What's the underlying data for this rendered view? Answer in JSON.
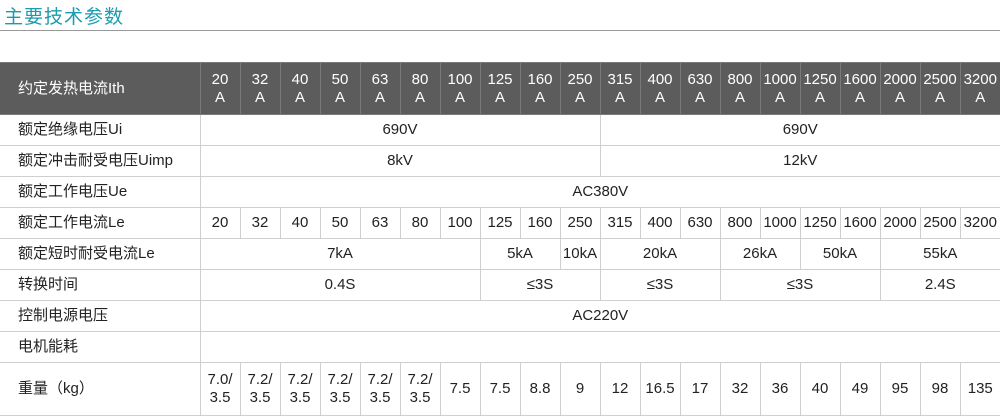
{
  "header": {
    "title": "主要技术参数"
  },
  "table": {
    "head": {
      "label": "约定发热电流Ith",
      "columns": [
        [
          "20",
          "A"
        ],
        [
          "32",
          "A"
        ],
        [
          "40",
          "A"
        ],
        [
          "50",
          "A"
        ],
        [
          "63",
          "A"
        ],
        [
          "80",
          "A"
        ],
        [
          "100",
          "A"
        ],
        [
          "125",
          "A"
        ],
        [
          "160",
          "A"
        ],
        [
          "250",
          "A"
        ],
        [
          "315",
          "A"
        ],
        [
          "400",
          "A"
        ],
        [
          "630",
          "A"
        ],
        [
          "800",
          "A"
        ],
        [
          "1000",
          "A"
        ],
        [
          "1250",
          "A"
        ],
        [
          "1600",
          "A"
        ],
        [
          "2000",
          "A"
        ],
        [
          "2500",
          "A"
        ],
        [
          "3200",
          "A"
        ]
      ]
    },
    "rows": [
      {
        "label": "额定绝缘电压Ui",
        "cells": [
          {
            "text": "690V",
            "span": 10
          },
          {
            "text": "690V",
            "span": 10
          }
        ]
      },
      {
        "label": "额定冲击耐受电压Uimp",
        "cells": [
          {
            "text": "8kV",
            "span": 10
          },
          {
            "text": "12kV",
            "span": 10
          }
        ]
      },
      {
        "label": "额定工作电压Ue",
        "cells": [
          {
            "text": "AC380V",
            "span": 20
          }
        ]
      },
      {
        "label": "额定工作电流Le",
        "cells": [
          {
            "text": "20"
          },
          {
            "text": "32"
          },
          {
            "text": "40"
          },
          {
            "text": "50"
          },
          {
            "text": "63"
          },
          {
            "text": "80"
          },
          {
            "text": "100"
          },
          {
            "text": "125"
          },
          {
            "text": "160"
          },
          {
            "text": "250"
          },
          {
            "text": "315"
          },
          {
            "text": "400"
          },
          {
            "text": "630"
          },
          {
            "text": "800"
          },
          {
            "text": "1000"
          },
          {
            "text": "1250"
          },
          {
            "text": "1600"
          },
          {
            "text": "2000"
          },
          {
            "text": "2500"
          },
          {
            "text": "3200"
          }
        ]
      },
      {
        "label": "额定短时耐受电流Le",
        "cells": [
          {
            "text": "7kA",
            "span": 7
          },
          {
            "text": "5kA",
            "span": 2
          },
          {
            "text": "10kA",
            "span": 1
          },
          {
            "text": "20kA",
            "span": 3
          },
          {
            "text": "26kA",
            "span": 2
          },
          {
            "text": "50kA",
            "span": 2
          },
          {
            "text": "55kA",
            "span": 3
          }
        ]
      },
      {
        "label": "转换时间",
        "cells": [
          {
            "text": "0.4S",
            "span": 7
          },
          {
            "text": "≤3S",
            "span": 3
          },
          {
            "text": "≤3S",
            "span": 3
          },
          {
            "text": "≤3S",
            "span": 4
          },
          {
            "text": "2.4S",
            "span": 3
          }
        ]
      },
      {
        "label": "控制电源电压",
        "cells": [
          {
            "text": "AC220V",
            "span": 20
          }
        ]
      },
      {
        "label": "电机能耗",
        "cells": []
      },
      {
        "label": "重量（kg）",
        "cells": [
          {
            "text": [
              "7.0/",
              "3.5"
            ]
          },
          {
            "text": [
              "7.2/",
              "3.5"
            ]
          },
          {
            "text": [
              "7.2/",
              "3.5"
            ]
          },
          {
            "text": [
              "7.2/",
              "3.5"
            ]
          },
          {
            "text": [
              "7.2/",
              "3.5"
            ]
          },
          {
            "text": [
              "7.2/",
              "3.5"
            ]
          },
          {
            "text": "7.5"
          },
          {
            "text": "7.5"
          },
          {
            "text": "8.8"
          },
          {
            "text": "9"
          },
          {
            "text": "12"
          },
          {
            "text": "16.5"
          },
          {
            "text": "17"
          },
          {
            "text": "32"
          },
          {
            "text": "36"
          },
          {
            "text": "40"
          },
          {
            "text": "49"
          },
          {
            "text": "95"
          },
          {
            "text": "98"
          },
          {
            "text": "135"
          }
        ]
      }
    ]
  }
}
